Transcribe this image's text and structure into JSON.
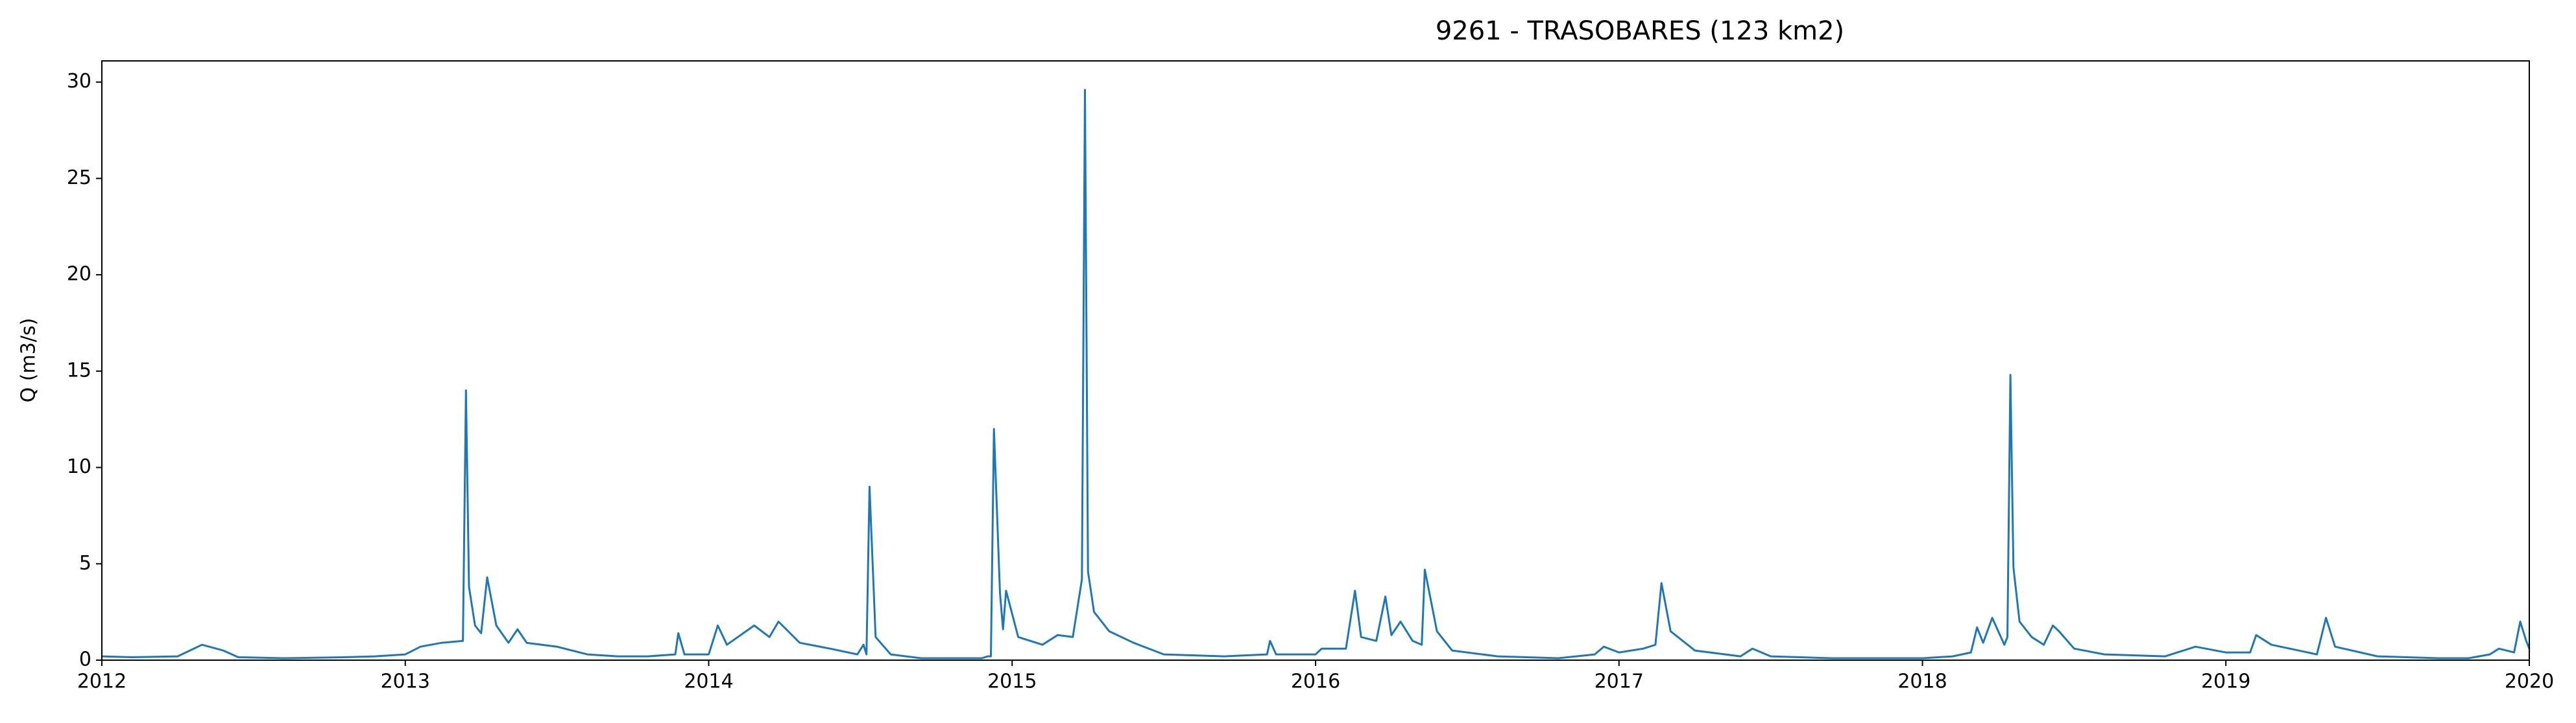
{
  "chart_data": {
    "type": "line",
    "title": "9261 - TRASOBARES (123 km2)",
    "y_label": "Q (m3/s)",
    "x": [
      2012.0,
      2012.1,
      2012.25,
      2012.33,
      2012.4,
      2012.45,
      2012.6,
      2012.8,
      2012.9,
      2013.0,
      2013.05,
      2013.12,
      2013.19,
      2013.2,
      2013.21,
      2013.23,
      2013.25,
      2013.27,
      2013.3,
      2013.34,
      2013.37,
      2013.4,
      2013.5,
      2013.6,
      2013.7,
      2013.8,
      2013.89,
      2013.9,
      2013.92,
      2014.0,
      2014.03,
      2014.06,
      2014.15,
      2014.2,
      2014.23,
      2014.3,
      2014.4,
      2014.49,
      2014.51,
      2014.52,
      2014.53,
      2014.55,
      2014.6,
      2014.7,
      2014.9,
      2014.92,
      2014.93,
      2014.94,
      2014.96,
      2014.97,
      2014.98,
      2015.02,
      2015.1,
      2015.15,
      2015.2,
      2015.23,
      2015.24,
      2015.25,
      2015.27,
      2015.32,
      2015.4,
      2015.5,
      2015.7,
      2015.84,
      2015.85,
      2015.87,
      2016.0,
      2016.02,
      2016.1,
      2016.13,
      2016.15,
      2016.2,
      2016.23,
      2016.25,
      2016.28,
      2016.32,
      2016.35,
      2016.36,
      2016.4,
      2016.45,
      2016.6,
      2016.8,
      2016.92,
      2016.95,
      2017.0,
      2017.08,
      2017.12,
      2017.14,
      2017.17,
      2017.25,
      2017.4,
      2017.44,
      2017.5,
      2017.7,
      2018.0,
      2018.1,
      2018.16,
      2018.18,
      2018.2,
      2018.23,
      2018.27,
      2018.28,
      2018.29,
      2018.3,
      2018.32,
      2018.36,
      2018.4,
      2018.43,
      2018.45,
      2018.5,
      2018.6,
      2018.8,
      2018.9,
      2019.0,
      2019.08,
      2019.1,
      2019.15,
      2019.3,
      2019.33,
      2019.36,
      2019.5,
      2019.7,
      2019.8,
      2019.87,
      2019.9,
      2019.95,
      2019.97,
      2019.99,
      2020.0
    ],
    "series": [
      {
        "color": "#1f77b4",
        "values": [
          0.2,
          0.15,
          0.2,
          0.8,
          0.5,
          0.15,
          0.1,
          0.15,
          0.2,
          0.3,
          0.7,
          0.9,
          1.0,
          14.0,
          3.8,
          1.8,
          1.4,
          4.3,
          1.8,
          0.9,
          1.6,
          0.9,
          0.7,
          0.3,
          0.2,
          0.2,
          0.3,
          1.4,
          0.3,
          0.3,
          1.8,
          0.8,
          1.8,
          1.2,
          2.0,
          0.9,
          0.6,
          0.3,
          0.8,
          0.3,
          9.0,
          1.2,
          0.3,
          0.1,
          0.1,
          0.2,
          0.2,
          12.0,
          3.5,
          1.6,
          3.6,
          1.2,
          0.8,
          1.3,
          1.2,
          4.2,
          29.6,
          4.6,
          2.5,
          1.5,
          0.9,
          0.3,
          0.2,
          0.3,
          1.0,
          0.3,
          0.3,
          0.6,
          0.6,
          3.6,
          1.2,
          1.0,
          3.3,
          1.3,
          2.0,
          1.0,
          0.8,
          4.7,
          1.5,
          0.5,
          0.2,
          0.1,
          0.3,
          0.7,
          0.4,
          0.6,
          0.8,
          4.0,
          1.5,
          0.5,
          0.2,
          0.6,
          0.2,
          0.1,
          0.1,
          0.2,
          0.4,
          1.7,
          0.9,
          2.2,
          0.8,
          1.2,
          14.8,
          4.8,
          2.0,
          1.2,
          0.8,
          1.8,
          1.5,
          0.6,
          0.3,
          0.2,
          0.7,
          0.4,
          0.4,
          1.3,
          0.8,
          0.3,
          2.2,
          0.7,
          0.2,
          0.1,
          0.1,
          0.3,
          0.6,
          0.4,
          2.0,
          1.0,
          0.6
        ]
      }
    ],
    "xlim": [
      2012,
      2020
    ],
    "xticks": [
      2012,
      2013,
      2014,
      2015,
      2016,
      2017,
      2018,
      2019,
      2020
    ],
    "ylim": [
      0,
      31.1
    ],
    "yticks": [
      0,
      5,
      10,
      15,
      20,
      25,
      30
    ]
  }
}
